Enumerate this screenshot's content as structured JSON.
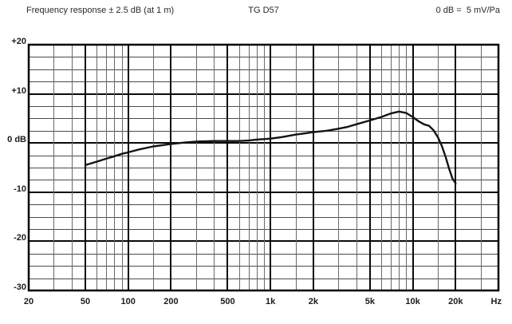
{
  "header": {
    "left": "Frequency response ± 2.5 dB (at 1 m)",
    "center": "TG D57",
    "right": "0 dB =  5 mV/Pa"
  },
  "chart_data": {
    "type": "line",
    "title": "Frequency response ± 2.5 dB (at 1 m)",
    "subtitle": "TG D57",
    "reference": "0 dB = 5 mV/Pa",
    "x_scale": "log",
    "x_unit": "Hz",
    "x_range": [
      20,
      40000
    ],
    "y_unit": "dB",
    "y_range": [
      -30,
      20
    ],
    "y_minor_step": 2.5,
    "y_major_step": 10,
    "grid": true,
    "x_gridlines": [
      20,
      30,
      40,
      50,
      60,
      70,
      80,
      90,
      100,
      150,
      200,
      300,
      400,
      500,
      600,
      700,
      800,
      900,
      1000,
      1500,
      2000,
      3000,
      4000,
      5000,
      6000,
      7000,
      8000,
      9000,
      10000,
      15000,
      20000,
      30000,
      40000
    ],
    "x_major_gridlines": [
      20,
      50,
      100,
      200,
      500,
      1000,
      2000,
      5000,
      10000,
      20000
    ],
    "x_ticks": [
      {
        "f": 20,
        "label": "20"
      },
      {
        "f": 50,
        "label": "50"
      },
      {
        "f": 100,
        "label": "100"
      },
      {
        "f": 200,
        "label": "200"
      },
      {
        "f": 500,
        "label": "500"
      },
      {
        "f": 1000,
        "label": "1k"
      },
      {
        "f": 2000,
        "label": "2k"
      },
      {
        "f": 5000,
        "label": "5k"
      },
      {
        "f": 10000,
        "label": "10k"
      },
      {
        "f": 20000,
        "label": "20k"
      }
    ],
    "x_axis_unit_label": "Hz",
    "y_ticks": [
      {
        "v": 20,
        "label": "+20"
      },
      {
        "v": 10,
        "label": "+10"
      },
      {
        "v": 0,
        "label": "0 dB"
      },
      {
        "v": -10,
        "label": "-10"
      },
      {
        "v": -20,
        "label": "-20"
      },
      {
        "v": -30,
        "label": "-30"
      }
    ],
    "colors": {
      "curve": "#141414",
      "major_grid": "#0a0a0a",
      "minor_grid_h": "#4a4a4a",
      "minor_grid_v": "#6a6a6a",
      "border": "#000000"
    },
    "series": [
      {
        "name": "frequency-response",
        "points": [
          [
            50,
            -4.5
          ],
          [
            60,
            -3.8
          ],
          [
            70,
            -3.2
          ],
          [
            80,
            -2.7
          ],
          [
            90,
            -2.2
          ],
          [
            100,
            -1.9
          ],
          [
            120,
            -1.3
          ],
          [
            150,
            -0.7
          ],
          [
            200,
            -0.2
          ],
          [
            250,
            0.1
          ],
          [
            300,
            0.3
          ],
          [
            400,
            0.4
          ],
          [
            500,
            0.4
          ],
          [
            600,
            0.4
          ],
          [
            700,
            0.5
          ],
          [
            800,
            0.7
          ],
          [
            900,
            0.8
          ],
          [
            1000,
            0.9
          ],
          [
            1200,
            1.2
          ],
          [
            1500,
            1.7
          ],
          [
            2000,
            2.2
          ],
          [
            2500,
            2.5
          ],
          [
            3000,
            2.9
          ],
          [
            3500,
            3.3
          ],
          [
            4000,
            3.8
          ],
          [
            5000,
            4.6
          ],
          [
            6000,
            5.3
          ],
          [
            7000,
            6.0
          ],
          [
            8000,
            6.4
          ],
          [
            9000,
            6.1
          ],
          [
            10000,
            5.3
          ],
          [
            11000,
            4.4
          ],
          [
            12000,
            3.8
          ],
          [
            13000,
            3.5
          ],
          [
            14000,
            2.6
          ],
          [
            15000,
            1.2
          ],
          [
            16000,
            -0.6
          ],
          [
            17000,
            -2.8
          ],
          [
            18000,
            -5.2
          ],
          [
            19000,
            -7.2
          ],
          [
            20000,
            -8.2
          ]
        ]
      }
    ]
  }
}
